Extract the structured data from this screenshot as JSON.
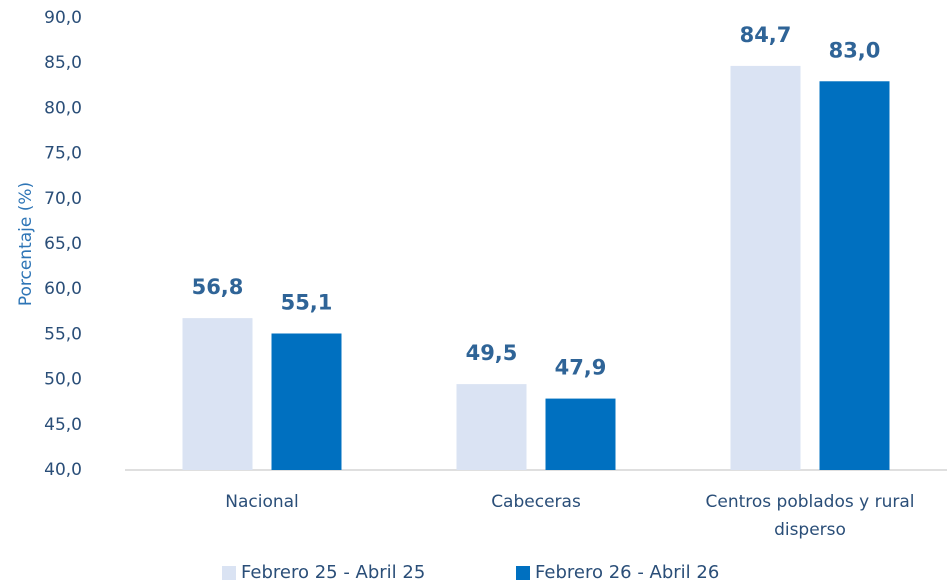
{
  "chart_data": {
    "type": "bar",
    "y_label": "Porcentaje (%)",
    "categories": [
      "Nacional",
      "Cabeceras",
      "Centros poblados y rural disperso"
    ],
    "series": [
      {
        "name": "Febrero 25 - Abril 25",
        "color": "#dae3f3",
        "values": [
          56.8,
          49.5,
          84.7
        ],
        "value_labels": [
          "56,8",
          "49,5",
          "84,7"
        ]
      },
      {
        "name": "Febrero 26 - Abril 26",
        "color": "#0070c0",
        "values": [
          55.1,
          47.9,
          83.0
        ],
        "value_labels": [
          "55,1",
          "47,9",
          "83,0"
        ]
      }
    ],
    "ylim": [
      40,
      90
    ],
    "yticks": [
      {
        "value": 40,
        "label": "40,0"
      },
      {
        "value": 45,
        "label": "45,0"
      },
      {
        "value": 50,
        "label": "50,0"
      },
      {
        "value": 55,
        "label": "55,0"
      },
      {
        "value": 60,
        "label": "60,0"
      },
      {
        "value": 65,
        "label": "65,0"
      },
      {
        "value": 70,
        "label": "70,0"
      },
      {
        "value": 75,
        "label": "75,0"
      },
      {
        "value": 80,
        "label": "80,0"
      },
      {
        "value": 85,
        "label": "85,0"
      },
      {
        "value": 90,
        "label": "90,0"
      }
    ],
    "grid": false,
    "legend": "bottom"
  }
}
